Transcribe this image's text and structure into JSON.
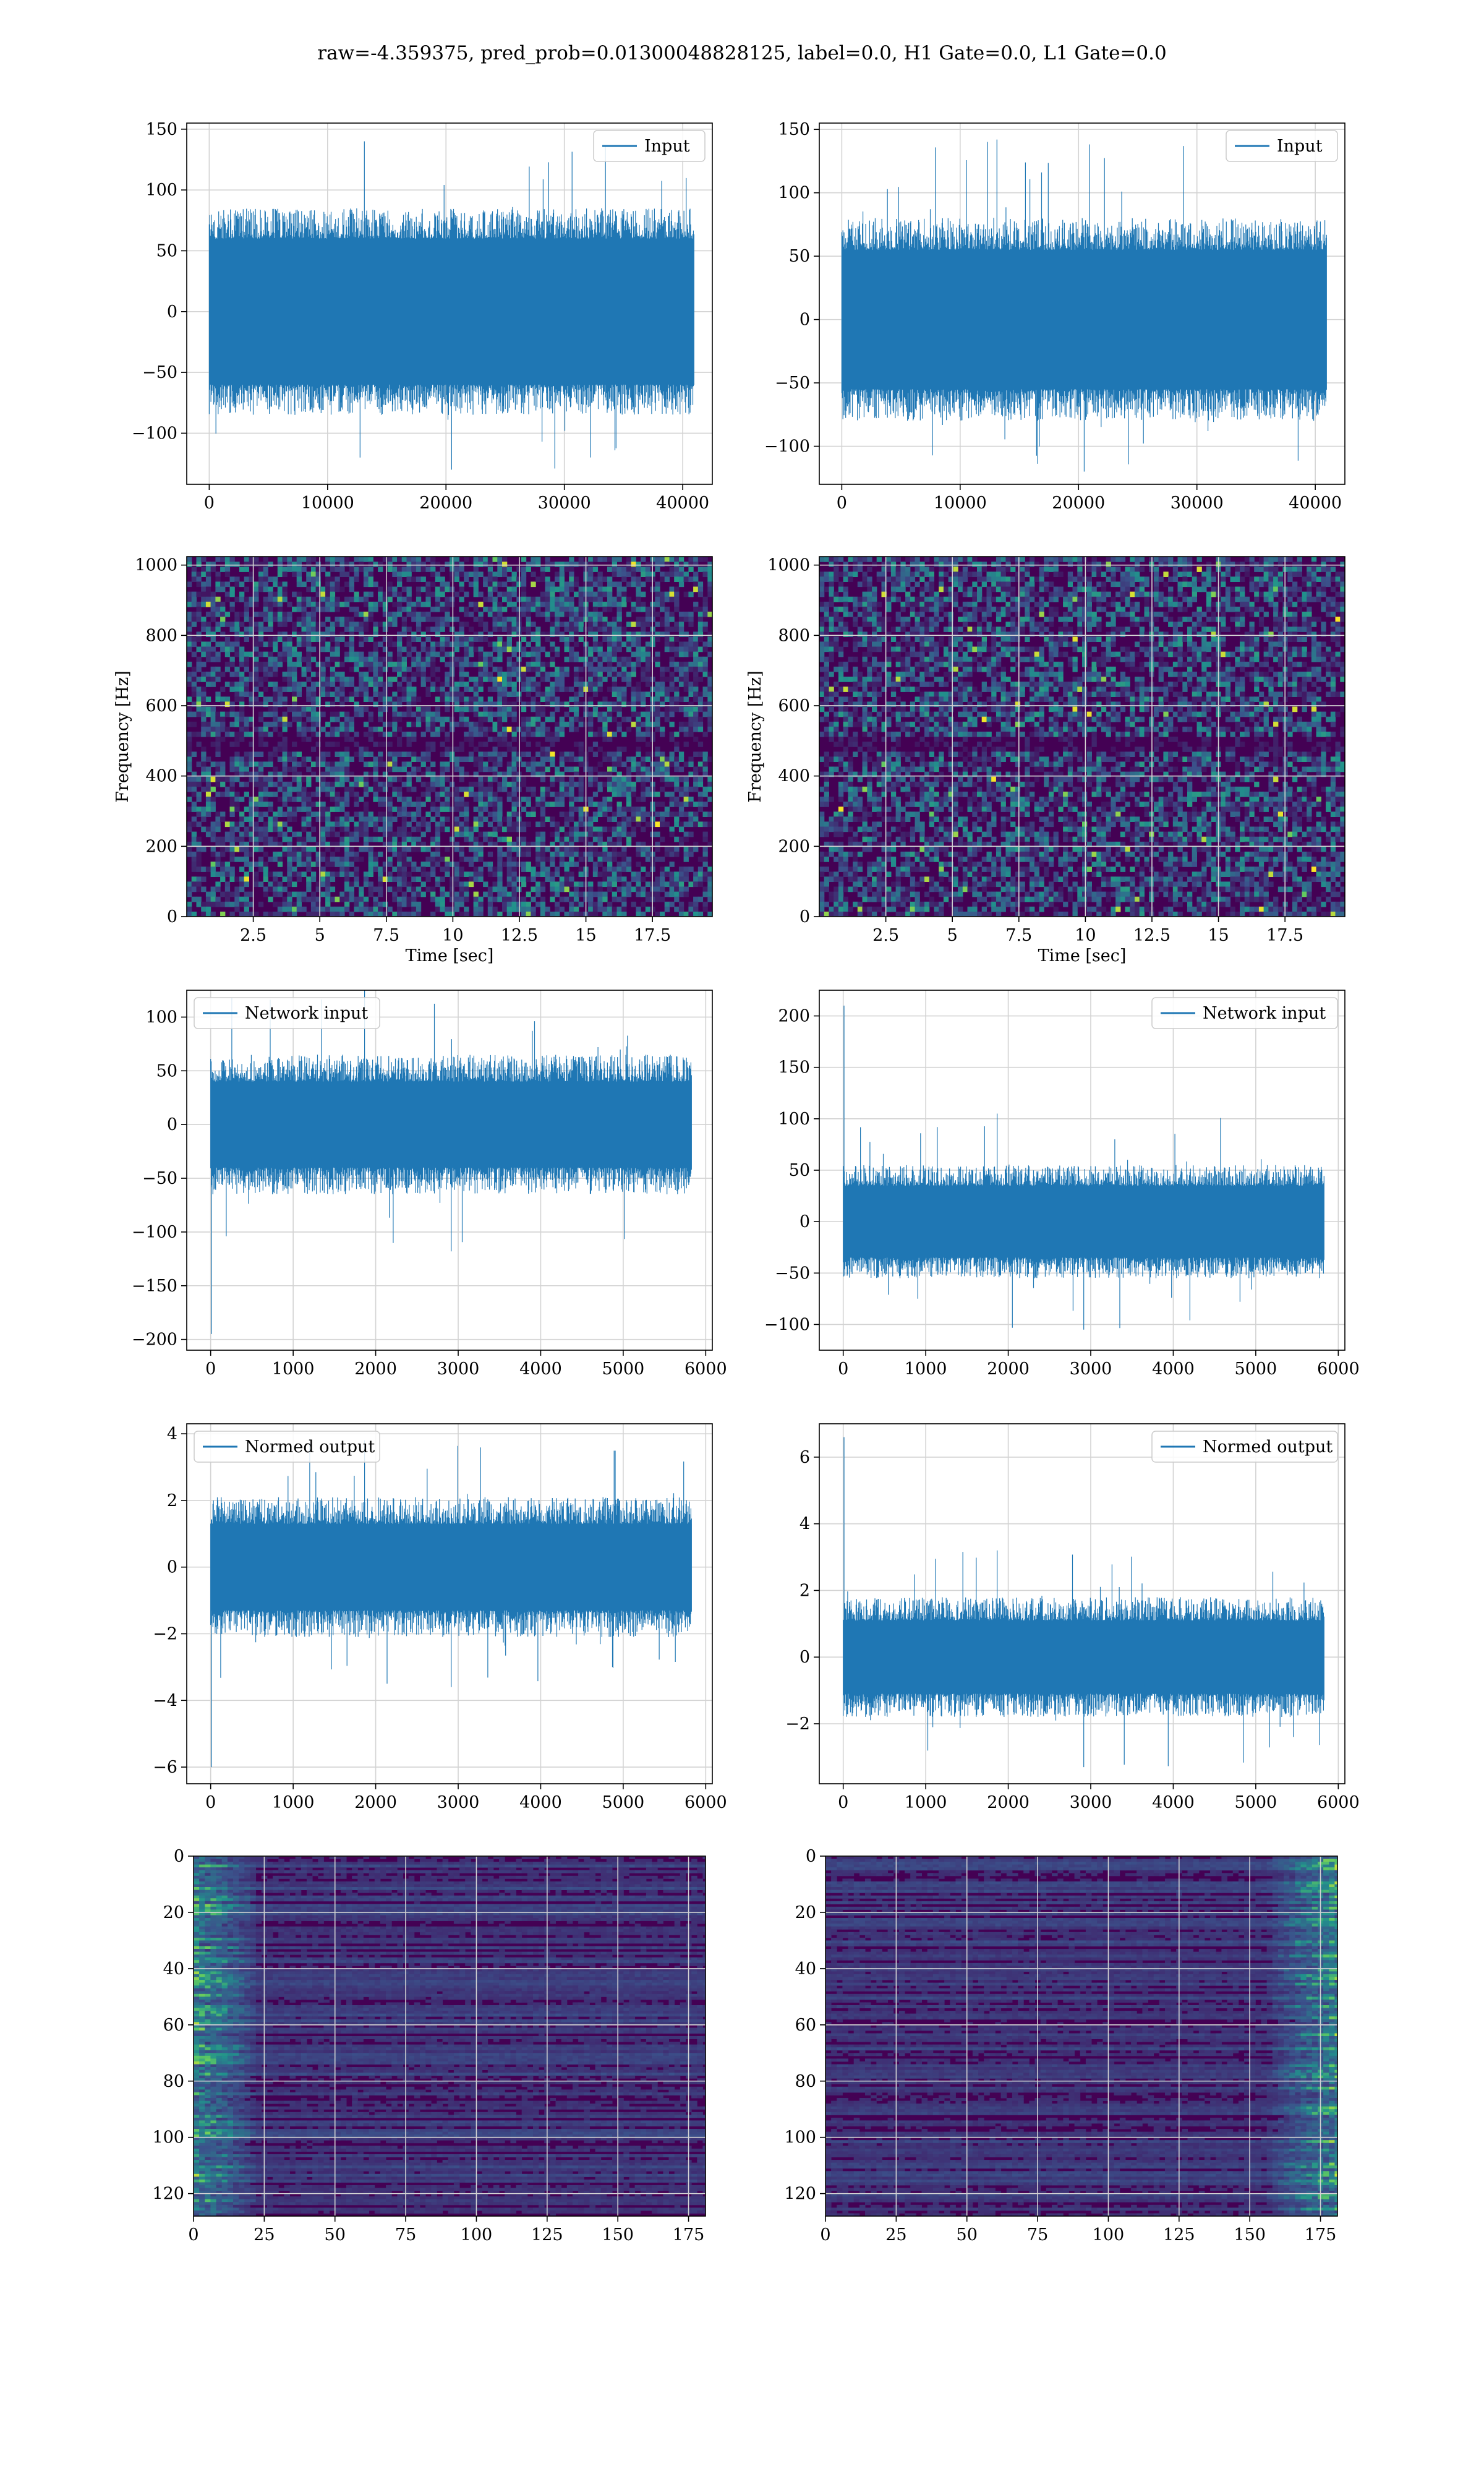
{
  "figure": {
    "suptitle": "raw=-4.359375, pred_prob=0.01300048828125, label=0.0, H1 Gate=0.0, L1 Gate=0.0"
  },
  "colors": {
    "line": "#1f77b4",
    "grid": "#d3d3d3",
    "viridis_low": "#440154",
    "viridis_mid": "#21918c",
    "viridis_high": "#fde725"
  },
  "chart_data": [
    {
      "id": "r0c0",
      "type": "line",
      "legend": "Input",
      "legend_loc": "upper right",
      "xlim": [
        -1900,
        42500
      ],
      "ylim": [
        -142,
        155
      ],
      "xticks": [
        0,
        10000,
        20000,
        30000,
        40000
      ],
      "yticks": [
        -100,
        -50,
        0,
        50,
        100,
        150
      ],
      "grid": true,
      "series": [
        {
          "x_range": [
            0,
            40960
          ],
          "band": [
            -60,
            60
          ],
          "typ_peak": 85,
          "max": 140,
          "min": -130
        }
      ]
    },
    {
      "id": "r0c1",
      "type": "line",
      "legend": "Input",
      "legend_loc": "upper right",
      "xlim": [
        -1900,
        42500
      ],
      "ylim": [
        -130,
        155
      ],
      "xticks": [
        0,
        10000,
        20000,
        30000,
        40000
      ],
      "yticks": [
        -100,
        -50,
        0,
        50,
        100,
        150
      ],
      "grid": true,
      "series": [
        {
          "x_range": [
            0,
            40960
          ],
          "band": [
            -55,
            55
          ],
          "typ_peak": 80,
          "max": 142,
          "min": -120
        }
      ]
    },
    {
      "id": "r1c0",
      "type": "heatmap",
      "subtype": "spectrogram",
      "xlabel": "Time [sec]",
      "ylabel": "Frequency [Hz]",
      "xlim": [
        0,
        19.75
      ],
      "ylim": [
        0,
        1024
      ],
      "xticks": [
        2.5,
        5.0,
        7.5,
        10.0,
        12.5,
        15.0,
        17.5
      ],
      "yticks": [
        0,
        200,
        400,
        600,
        800,
        1000
      ],
      "grid": true,
      "colormap": "viridis",
      "dark_band_hz": [
        470,
        510
      ]
    },
    {
      "id": "r1c1",
      "type": "heatmap",
      "subtype": "spectrogram",
      "xlabel": "Time [sec]",
      "ylabel": "Frequency [Hz]",
      "xlim": [
        0,
        19.75
      ],
      "ylim": [
        0,
        1024
      ],
      "xticks": [
        2.5,
        5.0,
        7.5,
        10.0,
        12.5,
        15.0,
        17.5
      ],
      "yticks": [
        0,
        200,
        400,
        600,
        800,
        1000
      ],
      "grid": true,
      "colormap": "viridis",
      "dark_band_hz": [
        470,
        510
      ]
    },
    {
      "id": "r2c0",
      "type": "line",
      "legend": "Network input",
      "legend_loc": "upper left",
      "xlim": [
        -290,
        6080
      ],
      "ylim": [
        -210,
        125
      ],
      "xticks": [
        0,
        1000,
        2000,
        3000,
        4000,
        5000,
        6000
      ],
      "yticks": [
        -200,
        -150,
        -100,
        -50,
        0,
        50,
        100
      ],
      "grid": true,
      "series": [
        {
          "x_range": [
            0,
            5830
          ],
          "band": [
            -40,
            40
          ],
          "typ_peak": 65,
          "max": 125,
          "min": -118,
          "spike": {
            "x": 10,
            "y": -195
          }
        }
      ]
    },
    {
      "id": "r2c1",
      "type": "line",
      "legend": "Network input",
      "legend_loc": "upper right",
      "xlim": [
        -290,
        6080
      ],
      "ylim": [
        -125,
        225
      ],
      "xticks": [
        0,
        1000,
        2000,
        3000,
        4000,
        5000,
        6000
      ],
      "yticks": [
        -100,
        -50,
        0,
        50,
        100,
        150,
        200
      ],
      "grid": true,
      "series": [
        {
          "x_range": [
            0,
            5830
          ],
          "band": [
            -35,
            35
          ],
          "typ_peak": 55,
          "max": 105,
          "min": -105,
          "spike": {
            "x": 10,
            "y": 210
          }
        }
      ]
    },
    {
      "id": "r3c0",
      "type": "line",
      "legend": "Normed output",
      "legend_loc": "upper left",
      "xlim": [
        -290,
        6080
      ],
      "ylim": [
        -6.5,
        4.3
      ],
      "xticks": [
        0,
        1000,
        2000,
        3000,
        4000,
        5000,
        6000
      ],
      "yticks": [
        -6,
        -4,
        -2,
        0,
        2,
        4
      ],
      "grid": true,
      "series": [
        {
          "x_range": [
            0,
            5830
          ],
          "band": [
            -1.3,
            1.3
          ],
          "typ_peak": 2.1,
          "max": 3.8,
          "min": -3.6,
          "spike": {
            "x": 10,
            "y": -6.0
          }
        }
      ]
    },
    {
      "id": "r3c1",
      "type": "line",
      "legend": "Normed output",
      "legend_loc": "upper right",
      "xlim": [
        -290,
        6080
      ],
      "ylim": [
        -3.8,
        7.0
      ],
      "xticks": [
        0,
        1000,
        2000,
        3000,
        4000,
        5000,
        6000
      ],
      "yticks": [
        -2,
        0,
        2,
        4,
        6
      ],
      "grid": true,
      "series": [
        {
          "x_range": [
            0,
            5830
          ],
          "band": [
            -1.1,
            1.1
          ],
          "typ_peak": 1.8,
          "max": 3.2,
          "min": -3.3,
          "spike": {
            "x": 10,
            "y": 6.6
          }
        }
      ]
    },
    {
      "id": "r4c0",
      "type": "heatmap",
      "subtype": "image",
      "xlim": [
        0,
        181
      ],
      "ylim": [
        128,
        0
      ],
      "xticks": [
        0,
        25,
        50,
        75,
        100,
        125,
        150,
        175
      ],
      "yticks": [
        0,
        20,
        40,
        60,
        80,
        100,
        120
      ],
      "grid": true,
      "colormap": "viridis",
      "hot_side": "left",
      "hot_width": 22
    },
    {
      "id": "r4c1",
      "type": "heatmap",
      "subtype": "image",
      "xlim": [
        0,
        181
      ],
      "ylim": [
        128,
        0
      ],
      "xticks": [
        0,
        25,
        50,
        75,
        100,
        125,
        150,
        175
      ],
      "yticks": [
        0,
        20,
        40,
        60,
        80,
        100,
        120
      ],
      "grid": true,
      "colormap": "viridis",
      "hot_side": "right",
      "hot_width": 25
    }
  ]
}
